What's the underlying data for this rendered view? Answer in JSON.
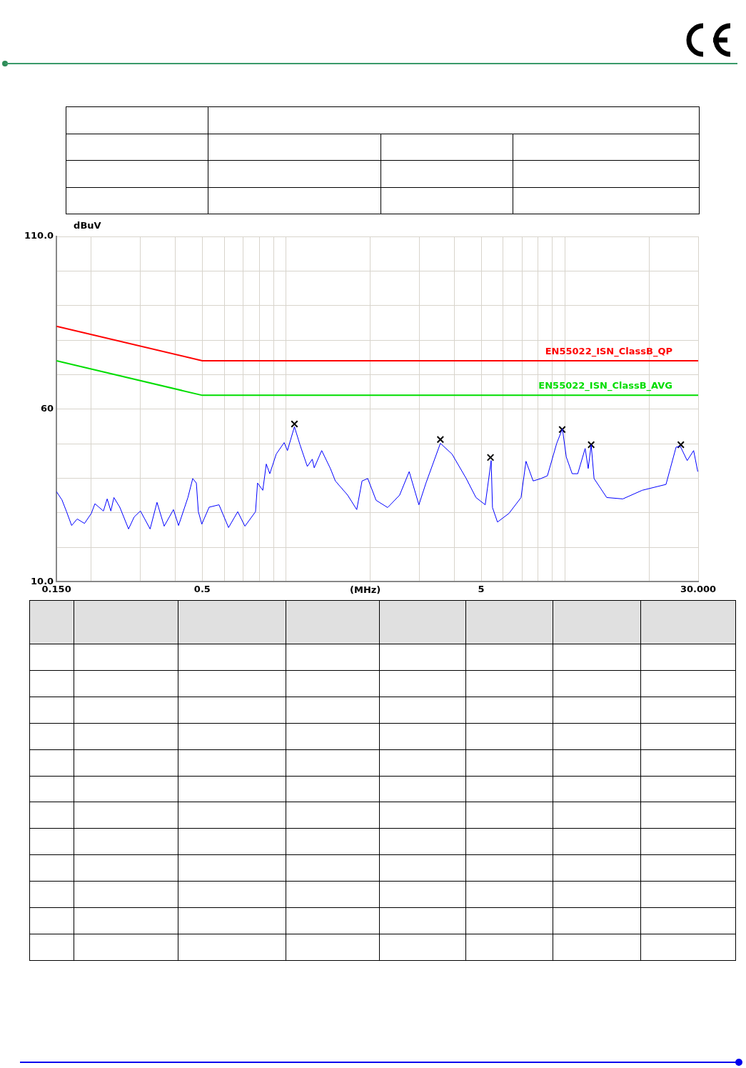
{
  "chart_data": {
    "type": "line",
    "xlabel": "(MHz)",
    "ylabel": "dBuV",
    "log": "x",
    "grid": true,
    "legend": false,
    "marker": "none",
    "xlim": [
      0.15,
      30
    ],
    "ylim": [
      10,
      110
    ],
    "xticks": [
      {
        "value": 0.15,
        "label": "0.150"
      },
      {
        "value": 0.2,
        "label": null
      },
      {
        "value": 0.3,
        "label": null
      },
      {
        "value": 0.4,
        "label": null
      },
      {
        "value": 0.5,
        "label": "0.5"
      },
      {
        "value": 0.6,
        "label": null
      },
      {
        "value": 0.7,
        "label": null
      },
      {
        "value": 0.8,
        "label": null
      },
      {
        "value": 0.9,
        "label": null
      },
      {
        "value": 1,
        "label": null
      },
      {
        "value": 2,
        "label": null
      },
      {
        "value": 3,
        "label": null
      },
      {
        "value": 4,
        "label": null
      },
      {
        "value": 5,
        "label": "5"
      },
      {
        "value": 6,
        "label": null
      },
      {
        "value": 7,
        "label": null
      },
      {
        "value": 8,
        "label": null
      },
      {
        "value": 9,
        "label": null
      },
      {
        "value": 10,
        "label": null
      },
      {
        "value": 20,
        "label": null
      },
      {
        "value": 30,
        "label": "30.000"
      }
    ],
    "yticks": [
      {
        "value": 10,
        "label": "10.0"
      },
      {
        "value": 20,
        "label": null
      },
      {
        "value": 30,
        "label": null
      },
      {
        "value": 40,
        "label": null
      },
      {
        "value": 50,
        "label": null
      },
      {
        "value": 60,
        "label": "60"
      },
      {
        "value": 70,
        "label": null
      },
      {
        "value": 80,
        "label": null
      },
      {
        "value": 90,
        "label": null
      },
      {
        "value": 100,
        "label": null
      },
      {
        "value": 110,
        "label": "110.0"
      }
    ],
    "series": [
      {
        "color": "#0000ff",
        "x": [
          0.15,
          0.157,
          0.163,
          0.17,
          0.178,
          0.189,
          0.2,
          0.206,
          0.221,
          0.228,
          0.235,
          0.241,
          0.253,
          0.272,
          0.285,
          0.3,
          0.325,
          0.344,
          0.365,
          0.394,
          0.411,
          0.444,
          0.462,
          0.476,
          0.484,
          0.498,
          0.529,
          0.574,
          0.621,
          0.67,
          0.711,
          0.776,
          0.789,
          0.824,
          0.848,
          0.873,
          0.921,
          0.983,
          1.01,
          1.07,
          1.12,
          1.19,
          1.24,
          1.26,
          1.34,
          1.44,
          1.5,
          1.66,
          1.79,
          1.87,
          1.96,
          2.1,
          2.31,
          2.55,
          2.76,
          2.99,
          3.17,
          3.57,
          3.93,
          4.42,
          4.79,
          5.17,
          5.43,
          5.49,
          5.72,
          6.29,
          6.95,
          7.24,
          7.68,
          8.19,
          8.64,
          9.33,
          9.78,
          10.1,
          10.6,
          11.1,
          11.8,
          12.1,
          12.4,
          12.7,
          14.1,
          16.1,
          18.9,
          23,
          25,
          25.9,
          27.4,
          28.9,
          29.9
        ],
        "values": [
          36.1,
          33.7,
          30.3,
          26.3,
          28.2,
          26.9,
          29.8,
          32.6,
          30.5,
          34,
          30.5,
          34.4,
          31.6,
          25.3,
          28.8,
          30.5,
          25.3,
          33,
          26.1,
          30.9,
          26.3,
          34.4,
          39.9,
          38.6,
          30.3,
          26.7,
          31.6,
          32.3,
          25.7,
          30.3,
          26.1,
          30.3,
          38.6,
          36.5,
          44.1,
          41.3,
          47,
          50.3,
          48,
          54.9,
          49.7,
          43.4,
          45.5,
          43,
          48,
          42.8,
          39.2,
          35.1,
          30.9,
          39.2,
          39.9,
          33.6,
          31.5,
          35.1,
          41.9,
          32.3,
          38.6,
          50.1,
          47,
          39.9,
          34.4,
          32.3,
          45.1,
          31.5,
          27.3,
          29.8,
          34.4,
          44.9,
          39.2,
          39.9,
          40.7,
          50.1,
          54.3,
          46.1,
          41.3,
          41.3,
          48.6,
          42.8,
          49.7,
          39.9,
          34.4,
          34,
          36.5,
          38.2,
          49,
          49.2,
          45.1,
          48,
          41.9
        ]
      },
      {
        "name": "EN55022_ISN_ClassB_QP",
        "color": "#ff0000",
        "x": [
          0.15,
          0.5,
          30
        ],
        "values": [
          84,
          74,
          74
        ]
      },
      {
        "name": "EN55022_ISN_ClassB_AVG",
        "color": "#00dd00",
        "x": [
          0.15,
          0.5,
          30
        ],
        "values": [
          74,
          64,
          64
        ]
      },
      {
        "type": "scatter",
        "marker": "cross",
        "color": "#000000",
        "x": [
          1.07,
          3.57,
          5.4,
          9.76,
          12.4,
          26.0
        ],
        "values": [
          55.7,
          51.2,
          46.0,
          54.1,
          49.7,
          49.7
        ]
      }
    ]
  }
}
